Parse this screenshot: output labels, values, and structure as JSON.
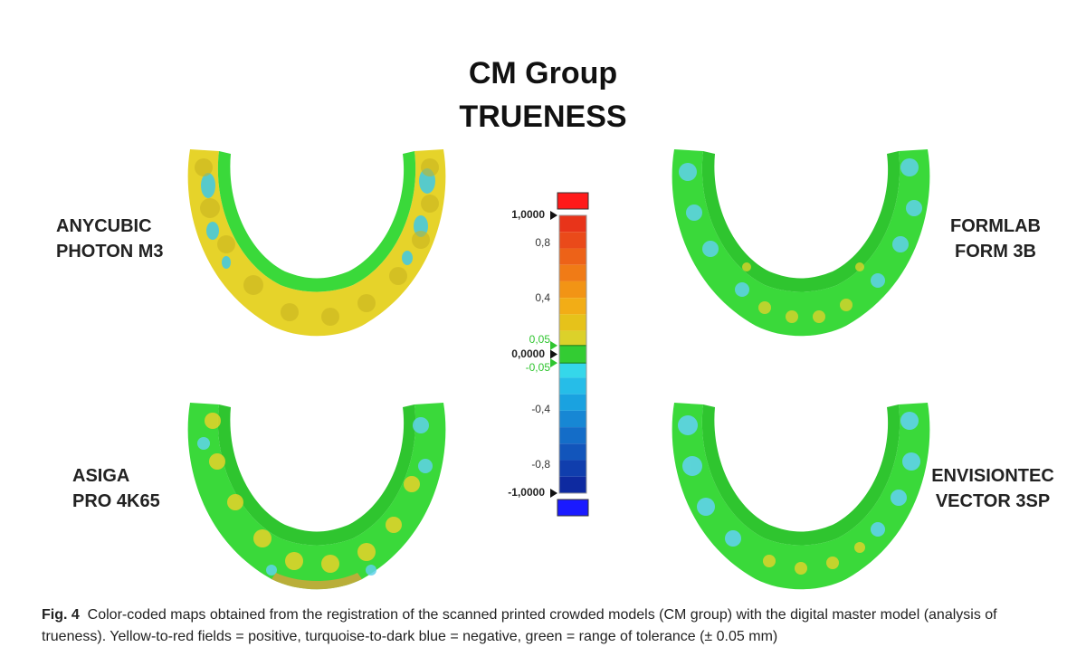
{
  "title": {
    "line1": "CM Group",
    "line2": "TRUENESS"
  },
  "labels": {
    "anycubic": [
      "ANYCUBIC",
      "PHOTON M3"
    ],
    "formlab": [
      "FORMLAB",
      "FORM 3B"
    ],
    "asiga": [
      "ASIGA",
      "PRO 4K65"
    ],
    "envisiontec": [
      "ENVISIONTEC",
      "VECTOR 3SP"
    ]
  },
  "scale": {
    "ticks": [
      {
        "label": "1,0000",
        "value": 1.0
      },
      {
        "label": "0,8",
        "value": 0.8
      },
      {
        "label": "0,4",
        "value": 0.4
      },
      {
        "label": "0,05",
        "value": 0.05
      },
      {
        "label": "0,0000",
        "value": 0.0
      },
      {
        "label": "-0,05",
        "value": -0.05
      },
      {
        "label": "-0,4",
        "value": -0.4
      },
      {
        "label": "-0,8",
        "value": -0.8
      },
      {
        "label": "-1,0000",
        "value": -1.0
      }
    ],
    "colors": {
      "over": "#ff1a1a",
      "under": "#1a1aff",
      "tolerance": "#33cc33"
    }
  },
  "caption": {
    "fig": "Fig. 4",
    "text": "Color-coded maps obtained from the registration of the scanned printed crowded models (CM group) with the digital master model (analysis of trueness). Yellow-to-red fields = positive, turquoise-to-dark blue = negative, green = range of tolerance (± 0.05 mm)"
  }
}
